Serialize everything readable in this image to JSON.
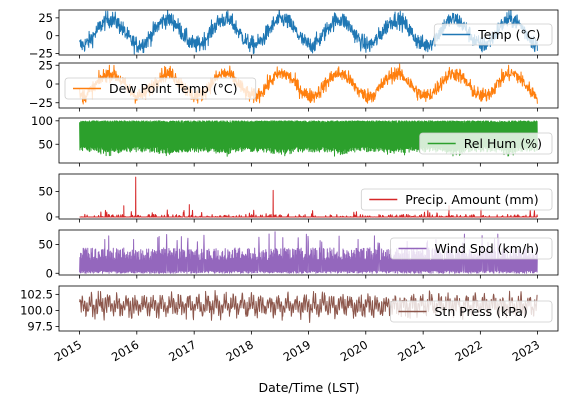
{
  "chart_data": {
    "type": "line",
    "xlabel": "Date/Time (LST)",
    "x_range": [
      "2015-01-01",
      "2022-12-31"
    ],
    "x_tick_labels": [
      "2015",
      "2016",
      "2017",
      "2018",
      "2019",
      "2020",
      "2021",
      "2022",
      "2023"
    ],
    "panels": [
      {
        "series_name": "Temp (°C)",
        "color": "#1f77b4",
        "ylim": [
          -27,
          36
        ],
        "y_ticks": [
          -25,
          0,
          25
        ],
        "y_tick_labels": [
          "−25",
          "0",
          "25"
        ],
        "legend_loc": "right",
        "data_summary": {
          "seasonal_mean": 5,
          "seasonal_amplitude": 18,
          "noise": 6,
          "peak_month": "July"
        }
      },
      {
        "series_name": "Dew Point Temp (°C)",
        "color": "#ff7f0e",
        "ylim": [
          -32,
          28
        ],
        "y_ticks": [
          -25,
          0,
          25
        ],
        "y_tick_labels": [
          "−25",
          "0",
          "25"
        ],
        "legend_loc": "left",
        "data_summary": {
          "seasonal_mean": -1,
          "seasonal_amplitude": 15,
          "noise": 5,
          "peak_month": "July"
        }
      },
      {
        "series_name": "Rel Hum (%)",
        "color": "#2ca02c",
        "ylim": [
          10,
          106
        ],
        "y_ticks": [
          50,
          100
        ],
        "y_tick_labels": [
          "50",
          "100"
        ],
        "legend_loc": "right",
        "data_summary": {
          "range": [
            20,
            100
          ],
          "typical": [
            50,
            100
          ]
        }
      },
      {
        "series_name": "Precip. Amount (mm)",
        "color": "#d62728",
        "ylim": [
          -4,
          84
        ],
        "y_ticks": [
          0,
          50
        ],
        "y_tick_labels": [
          "0",
          "50"
        ],
        "legend_loc": "right",
        "data_summary": {
          "baseline": 0,
          "typical_max": 15
        },
        "spikes": [
          {
            "date": "2015-12-25",
            "value": 78
          },
          {
            "date": "2018-05-20",
            "value": 52
          },
          {
            "date": "2016-12-01",
            "value": 24
          },
          {
            "date": "2015-10-10",
            "value": 22
          },
          {
            "date": "2021-06-15",
            "value": 22
          },
          {
            "date": "2022-01-05",
            "value": 16
          }
        ]
      },
      {
        "series_name": "Wind Spd (km/h)",
        "color": "#9467bd",
        "ylim": [
          -3,
          75
        ],
        "y_ticks": [
          0,
          50
        ],
        "y_tick_labels": [
          "0",
          "50"
        ],
        "legend_loc": "right",
        "data_summary": {
          "baseline": 0,
          "typical_max": 45,
          "peak": 72
        }
      },
      {
        "series_name": "Stn Press (kPa)",
        "color": "#8c564b",
        "ylim": [
          96.8,
          103.8
        ],
        "y_ticks": [
          97.5,
          100.0,
          102.5
        ],
        "y_tick_labels": [
          "97.5",
          "100.0",
          "102.5"
        ],
        "legend_loc": "right",
        "data_summary": {
          "mean": 100.8,
          "range": [
            98.0,
            103.4
          ]
        }
      }
    ]
  }
}
